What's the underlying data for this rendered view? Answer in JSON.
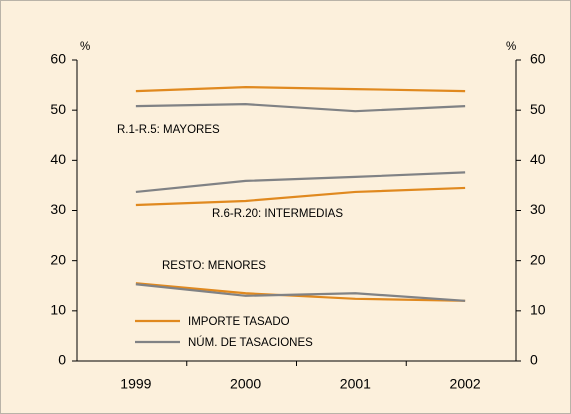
{
  "chart_data": {
    "type": "line",
    "categories": [
      "1999",
      "2000",
      "2001",
      "2002"
    ],
    "series": [
      {
        "name": "IMPORTE TASADO",
        "color": "#e0891f",
        "values": [
          [
            53.8,
            54.6,
            54.2,
            53.8
          ],
          [
            31.1,
            31.9,
            33.7,
            34.5
          ],
          [
            15.5,
            13.5,
            12.4,
            12.0
          ]
        ]
      },
      {
        "name": "NÚM. DE TASACIONES",
        "color": "#808285",
        "values": [
          [
            50.8,
            51.2,
            49.8,
            50.8
          ],
          [
            33.7,
            35.9,
            36.7,
            37.6
          ],
          [
            15.3,
            13.0,
            13.5,
            12.0
          ]
        ]
      }
    ],
    "annotations": [
      "R.1-R.5: MAYORES",
      "R.6-R.20: INTERMEDIAS",
      "RESTO: MENORES"
    ],
    "y_unit": "%",
    "y2_unit": "%",
    "ylim": [
      0,
      60
    ],
    "yticks": [
      0,
      10,
      20,
      30,
      40,
      50,
      60
    ],
    "y2lim": [
      0,
      60
    ],
    "y2ticks": [
      0,
      10,
      20,
      30,
      40,
      50,
      60
    ],
    "grid": false
  }
}
